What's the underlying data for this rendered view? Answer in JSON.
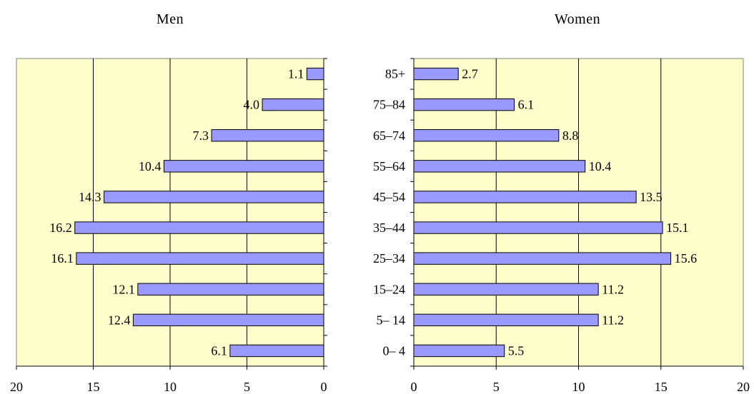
{
  "chart_data": [
    {
      "type": "bar",
      "orientation": "horizontal",
      "title": "Men",
      "categories": [
        "85+",
        "75–84",
        "65–74",
        "55–64",
        "45–54",
        "35–44",
        "25–34",
        "15–24",
        "5– 14",
        "0– 4"
      ],
      "values": [
        1.1,
        4.0,
        7.3,
        10.4,
        14.3,
        16.2,
        16.1,
        12.1,
        12.4,
        6.1
      ],
      "value_labels": [
        "1.1",
        "4.0",
        "7.3",
        "10.4",
        "14.3",
        "16.2",
        "16.1",
        "12.1",
        "12.4",
        "6.1"
      ],
      "xlim": [
        0,
        20
      ],
      "x_reversed": true,
      "xticks": [
        20,
        15,
        10,
        5,
        0
      ],
      "grid": true,
      "bar_color": "#9999ff",
      "background": "#ffffcc"
    },
    {
      "type": "bar",
      "orientation": "horizontal",
      "title": "Women",
      "categories": [
        "85+",
        "75–84",
        "65–74",
        "55–64",
        "45–54",
        "35–44",
        "25–34",
        "15–24",
        "5– 14",
        "0– 4"
      ],
      "values": [
        2.7,
        6.1,
        8.8,
        10.4,
        13.5,
        15.1,
        15.6,
        11.2,
        11.2,
        5.5
      ],
      "value_labels": [
        "2.7",
        "6.1",
        "8.8",
        "10.4",
        "13.5",
        "15.1",
        "15.6",
        "11.2",
        "11.2",
        "5.5"
      ],
      "xlim": [
        0,
        20
      ],
      "x_reversed": false,
      "xticks": [
        0,
        5,
        10,
        15,
        20
      ],
      "grid": true,
      "bar_color": "#9999ff",
      "background": "#ffffcc"
    }
  ]
}
